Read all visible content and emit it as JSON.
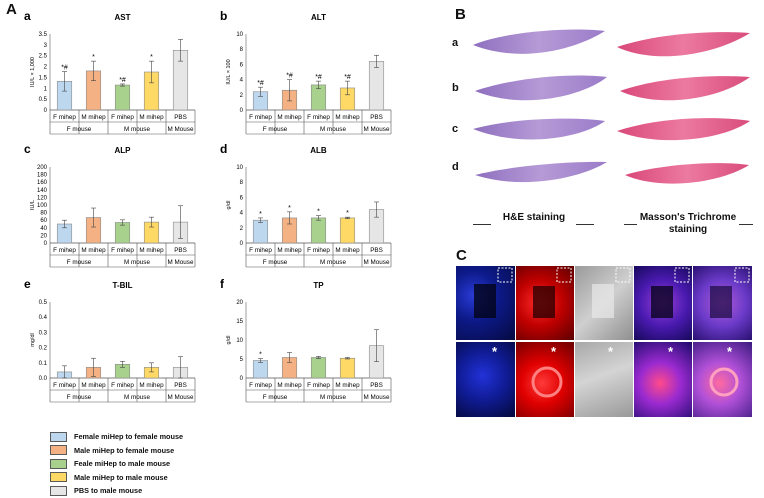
{
  "panel_labels": {
    "A": "A",
    "B": "B",
    "C": "C"
  },
  "chart_data": [
    {
      "type": "bar",
      "sub": "a",
      "title": "AST",
      "ylabel": "IU/L × 1,000",
      "ylim": [
        0,
        3.5
      ],
      "ticks": [
        "0",
        "0.5",
        "1",
        "1.5",
        "2",
        "2.5",
        "3",
        "3.5"
      ],
      "values": [
        1.32,
        1.8,
        1.15,
        1.75,
        2.75
      ],
      "errors": [
        0.45,
        0.45,
        0.05,
        0.5,
        0.5
      ],
      "marks": [
        "*#",
        "*",
        "*#",
        "*",
        ""
      ]
    },
    {
      "type": "bar",
      "sub": "b",
      "title": "ALT",
      "ylabel": "IU/L × 100",
      "ylim": [
        0,
        10
      ],
      "ticks": [
        "0",
        "2",
        "4",
        "6",
        "8",
        "10"
      ],
      "values": [
        2.4,
        2.6,
        3.3,
        2.9,
        6.4
      ],
      "errors": [
        0.6,
        1.4,
        0.5,
        0.9,
        0.8
      ],
      "marks": [
        "*#",
        "*#",
        "*#",
        "*#",
        ""
      ]
    },
    {
      "type": "bar",
      "sub": "c",
      "title": "ALP",
      "ylabel": "IU/L",
      "ylim": [
        0,
        200
      ],
      "ticks": [
        "0",
        "20",
        "40",
        "60",
        "80",
        "100",
        "120",
        "140",
        "160",
        "180",
        "200"
      ],
      "values": [
        50,
        67,
        54,
        55,
        55
      ],
      "errors": [
        10,
        25,
        7,
        13,
        43
      ],
      "marks": [
        "",
        "",
        "",
        "",
        ""
      ]
    },
    {
      "type": "bar",
      "sub": "d",
      "title": "ALB",
      "ylabel": "g/dl",
      "ylim": [
        0,
        10
      ],
      "ticks": [
        "0",
        "2",
        "4",
        "6",
        "8",
        "10"
      ],
      "values": [
        3.0,
        3.3,
        3.3,
        3.3,
        4.4
      ],
      "errors": [
        0.3,
        0.8,
        0.3,
        0.1,
        1.0
      ],
      "marks": [
        "*",
        "*",
        "*",
        "*",
        ""
      ]
    },
    {
      "type": "bar",
      "sub": "e",
      "title": "T-BIL",
      "ylabel": "mg/dl",
      "ylim": [
        0,
        0.5
      ],
      "ticks": [
        "0.0",
        "0.1",
        "0.2",
        "0.3",
        "0.4",
        "0.5"
      ],
      "values": [
        0.04,
        0.07,
        0.09,
        0.07,
        0.07
      ],
      "errors": [
        0.04,
        0.06,
        0.02,
        0.03,
        0.07
      ],
      "marks": [
        "",
        "",
        "",
        "",
        ""
      ]
    },
    {
      "type": "bar",
      "sub": "f",
      "title": "TP",
      "ylabel": "g/dl",
      "ylim": [
        0,
        20
      ],
      "ticks": [
        "0",
        "5",
        "10",
        "15",
        "20"
      ],
      "values": [
        4.6,
        5.4,
        5.4,
        5.2,
        8.5
      ],
      "errors": [
        0.5,
        1.3,
        0.3,
        0.2,
        4.2
      ],
      "marks": [
        "*",
        "",
        "",
        "",
        ""
      ]
    }
  ],
  "categories": [
    "F mihep",
    "M mihep",
    "F mihep",
    "M mihep",
    "PBS"
  ],
  "groups": [
    "F mouse",
    "M mouse",
    "M Mouse"
  ],
  "colors": [
    "#bdd7ee",
    "#f4b183",
    "#a9d18e",
    "#ffd966",
    "#e7e6e6"
  ],
  "legend": [
    "Female miHep  to female mouse",
    "Male miHep  to female mouse",
    "Feale miHep  to male mouse",
    "Male miHep  to male mouse",
    "PBS to male mouse"
  ],
  "panelB": {
    "rows": [
      "a",
      "b",
      "c",
      "d"
    ],
    "left_title": "H&E staining",
    "right_title": "Masson's Trichrome staining"
  },
  "panelC": {
    "marker": "*"
  }
}
